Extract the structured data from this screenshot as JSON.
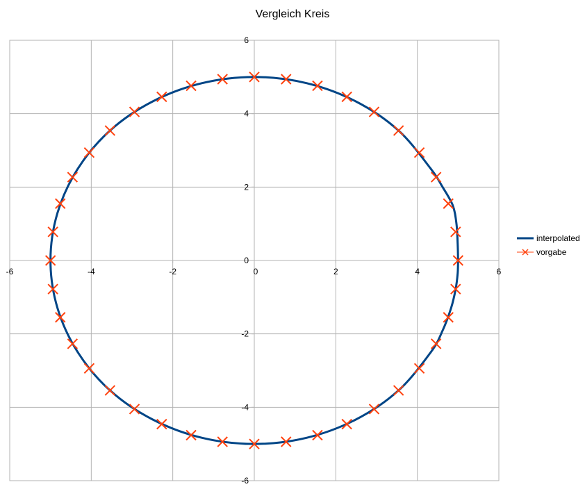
{
  "chart_data": {
    "type": "scatter",
    "title": "Vergleich Kreis",
    "xlabel": "",
    "ylabel": "",
    "xlim": [
      -6,
      6
    ],
    "ylim": [
      -6,
      6
    ],
    "x_ticks": [
      "-6",
      "-4",
      "-2",
      "0",
      "2",
      "4",
      "6"
    ],
    "y_ticks": [
      "6",
      "4",
      "2",
      "0",
      "-2",
      "-4",
      "-6"
    ],
    "grid": true,
    "legend_position": "right",
    "series": [
      {
        "name": "interpolated",
        "style": "line",
        "color": "#004586",
        "x": [
          5.0,
          4.99,
          4.96,
          4.87,
          4.62,
          4.33,
          3.54,
          2.5,
          1.29,
          0.0,
          -1.29,
          -2.5,
          -3.54,
          -4.33,
          -4.83,
          -5.0,
          -4.83,
          -4.33,
          -3.54,
          -2.5,
          -1.29,
          0.0,
          1.29,
          2.5,
          3.54,
          4.33,
          4.62,
          4.83,
          4.94,
          4.99,
          5.0
        ],
        "y": [
          0.0,
          0.45,
          1.0,
          1.5,
          2.0,
          2.5,
          3.54,
          4.33,
          4.83,
          5.0,
          4.83,
          4.33,
          3.54,
          2.5,
          1.29,
          0.0,
          -1.29,
          -2.5,
          -3.54,
          -4.33,
          -4.83,
          -5.0,
          -4.83,
          -4.33,
          -3.54,
          -2.5,
          -1.91,
          -1.29,
          -0.78,
          -0.35,
          0.0
        ]
      },
      {
        "name": "vorgabe",
        "style": "marker-x",
        "color": "#ff420e",
        "x": [
          5.0,
          4.94,
          4.76,
          4.46,
          4.05,
          3.54,
          2.94,
          2.27,
          1.55,
          0.78,
          0.0,
          -0.78,
          -1.55,
          -2.27,
          -2.94,
          -3.54,
          -4.05,
          -4.46,
          -4.76,
          -4.94,
          -5.0,
          -4.94,
          -4.76,
          -4.46,
          -4.05,
          -3.54,
          -2.94,
          -2.27,
          -1.55,
          -0.78,
          0.0,
          0.78,
          1.55,
          2.27,
          2.94,
          3.54,
          4.05,
          4.46,
          4.76,
          4.94
        ],
        "y": [
          0.0,
          0.78,
          1.55,
          2.27,
          2.94,
          3.54,
          4.05,
          4.46,
          4.76,
          4.94,
          5.0,
          4.94,
          4.76,
          4.46,
          4.05,
          3.54,
          2.94,
          2.27,
          1.55,
          0.78,
          0.0,
          -0.78,
          -1.55,
          -2.27,
          -2.94,
          -3.54,
          -4.05,
          -4.46,
          -4.76,
          -4.94,
          -5.0,
          -4.94,
          -4.76,
          -4.46,
          -4.05,
          -3.54,
          -2.94,
          -2.27,
          -1.55,
          -0.78
        ]
      }
    ]
  }
}
